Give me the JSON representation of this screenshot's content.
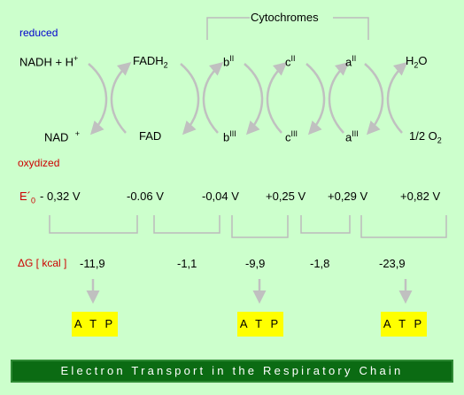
{
  "header": {
    "cytochromes": "Cytochromes"
  },
  "states": {
    "reduced": "reduced",
    "oxidized": "oxydized"
  },
  "carriers_reduced": {
    "nadh": {
      "base": "NADH + H",
      "sup": "+"
    },
    "fadh2": {
      "base": "FADH",
      "sub": "2"
    },
    "b": {
      "base": "b",
      "sup": "II"
    },
    "c": {
      "base": "c",
      "sup": "II"
    },
    "a": {
      "base": "a",
      "sup": "II"
    },
    "h2o": {
      "base": "H",
      "sub": "2",
      "tail": "O"
    }
  },
  "carriers_oxidized": {
    "nad": {
      "base": "NAD",
      "sup": "+"
    },
    "fad": {
      "base": "FAD"
    },
    "b": {
      "base": "b",
      "sup": "III"
    },
    "c": {
      "base": "c",
      "sup": "III"
    },
    "a": {
      "base": "a",
      "sup": "III"
    },
    "o2": {
      "base": "1/2 O",
      "sub": "2"
    }
  },
  "potential": {
    "label": {
      "base": "E´",
      "sub": "0"
    },
    "values": [
      "- 0,32 V",
      "-0.06 V",
      "-0,04 V",
      "+0,25 V",
      "+0,29 V",
      "+0,82 V"
    ]
  },
  "free_energy": {
    "label": "ΔG [ kcal ]",
    "values": [
      "-11,9",
      "-1,1",
      "-9,9",
      "-1,8",
      "-23,9"
    ]
  },
  "atp": [
    "A T P",
    "A T P",
    "A T P"
  ],
  "title": "Electron Transport in the Respiratory Chain",
  "colors": {
    "background": "#ccffcc",
    "atp_box": "#ffff00",
    "banner": "#0b6b13",
    "arrow": "#c0c0c0"
  }
}
